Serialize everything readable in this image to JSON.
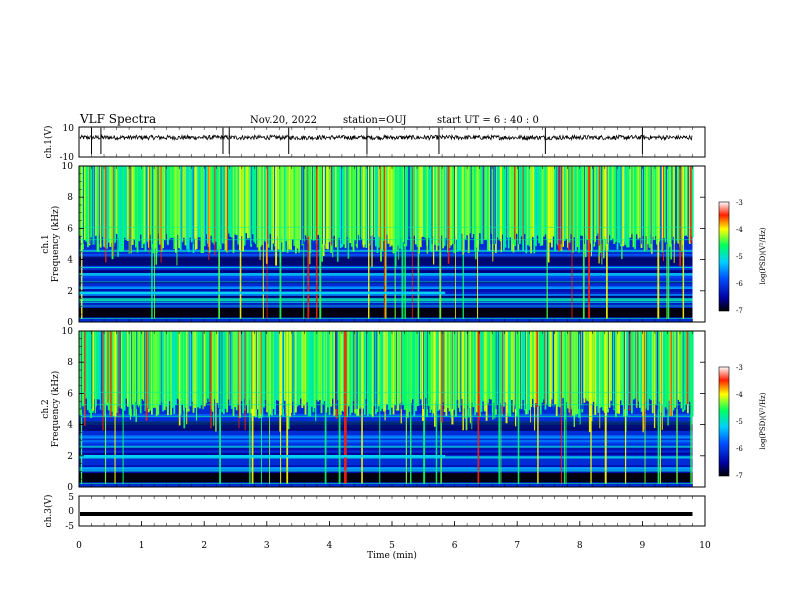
{
  "header": {
    "title": "VLF Spectra",
    "date": "Nov.20, 2022",
    "station": "station=OUJ",
    "start_ut": "start UT =  6 : 40 : 0"
  },
  "chart_data": [
    {
      "type": "line",
      "panel": "ch1-waveform",
      "ylabel": "ch.1(V)",
      "ylim": [
        -10,
        10
      ],
      "yticks": [
        "10",
        "-10"
      ],
      "baseline_v": 3,
      "spikes_min": [
        0.2,
        0.35,
        2.3,
        2.4,
        3.35,
        4.6,
        5.75,
        7.45,
        9.0
      ],
      "color": "#000000"
    },
    {
      "type": "heatmap",
      "panel": "ch1-spectrogram",
      "ylabel_line1": "ch.1",
      "ylabel_line2": "Frequency  (kHz)",
      "ylim": [
        0,
        10
      ],
      "yticks": [
        "0",
        "2",
        "4",
        "6",
        "8",
        "10"
      ],
      "xlim_min": [
        0,
        9.8
      ],
      "colorbar": {
        "label": "log(PSD)(V²/Hz)",
        "range": [
          -7,
          -3
        ],
        "ticks": [
          "-3",
          "-4",
          "-5",
          "-6",
          "-7"
        ]
      },
      "bright_band_khz": 1.8,
      "bright_band_end_min": 5.85
    },
    {
      "type": "heatmap",
      "panel": "ch2-spectrogram",
      "ylabel_line1": "ch.2",
      "ylabel_line2": "Frequency  (kHz)",
      "ylim": [
        0,
        10
      ],
      "yticks": [
        "0",
        "2",
        "4",
        "6",
        "8",
        "10"
      ],
      "xlim_min": [
        0,
        9.8
      ],
      "colorbar": {
        "label": "log(PSD)(V²/Hz)",
        "range": [
          -7,
          -3
        ],
        "ticks": [
          "-3",
          "-4",
          "-5",
          "-6",
          "-7"
        ]
      },
      "bright_band_khz": 1.9,
      "bright_band_end_min": 5.85
    },
    {
      "type": "line",
      "panel": "ch3-waveform",
      "ylabel": "ch.3(V)",
      "ylim": [
        -5,
        5
      ],
      "yticks": [
        "5",
        "0",
        "-5"
      ],
      "level_v": -1,
      "color": "#000000"
    }
  ],
  "xaxis": {
    "label": "Time  (min)",
    "range": [
      0,
      10
    ],
    "ticks": [
      "0",
      "1",
      "2",
      "3",
      "4",
      "5",
      "6",
      "7",
      "8",
      "9",
      "10"
    ]
  }
}
